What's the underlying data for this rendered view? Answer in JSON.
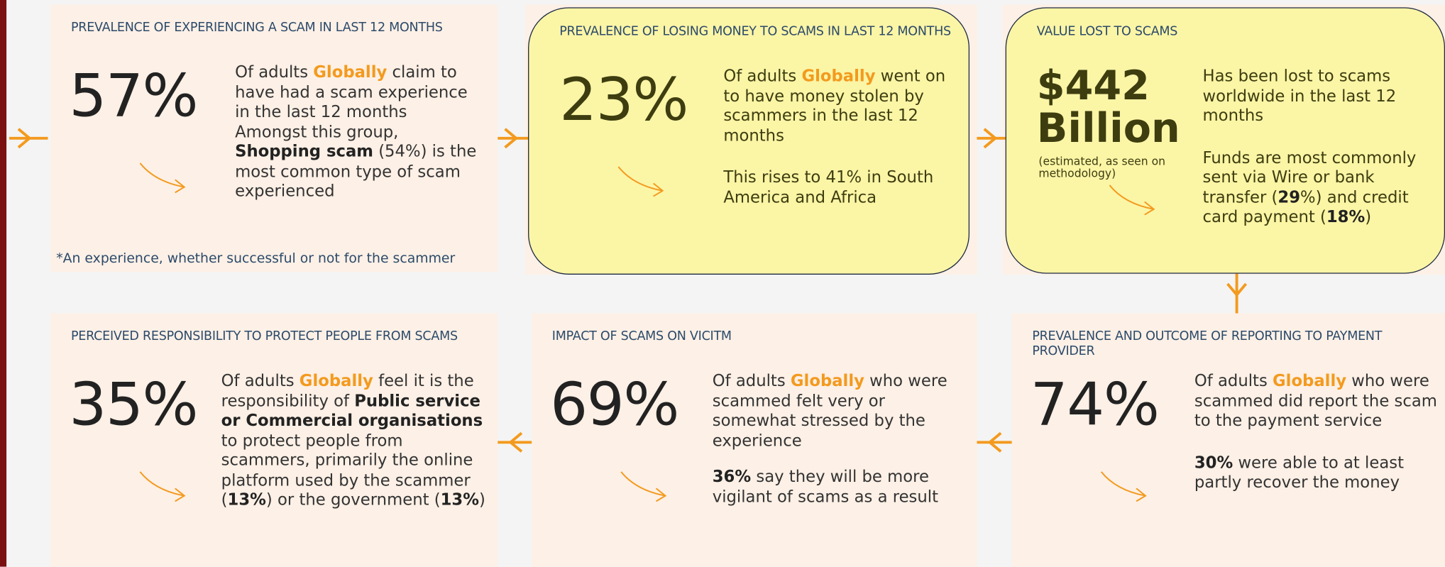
{
  "panels": [
    {
      "title": "PREVALENCE OF EXPERIENCING A SCAM IN LAST 12 MONTHS",
      "figure": "57%",
      "highlight": false,
      "body": [
        [
          {
            "text": "Of adults "
          },
          {
            "text": "Globally",
            "style": "highlight"
          },
          {
            "text": " claim to have had a scam experience in the last 12 months"
          }
        ],
        [
          {
            "text": "Amongst this group, "
          },
          {
            "text": "Shopping scam",
            "style": "bold"
          },
          {
            "text": " (54%) is the most common type of scam experienced"
          }
        ]
      ],
      "footnote": "*An experience, whether successful or not for the scammer"
    },
    {
      "title": "PREVALENCE OF LOSING MONEY TO SCAMS IN LAST 12 MONTHS",
      "figure": "23%",
      "highlight": true,
      "body": [
        [
          {
            "text": "Of adults "
          },
          {
            "text": "Globally",
            "style": "highlight"
          },
          {
            "text": " went on to have money stolen by scammers in the last 12 months"
          }
        ],
        [
          {
            "text": "This rises to 41% in South America and Africa"
          }
        ]
      ]
    },
    {
      "title": "VALUE LOST TO SCAMS",
      "figure": "$442 Billion",
      "highlight": true,
      "note": "(estimated, as seen on methodology)",
      "body": [
        [
          {
            "text": "Has been lost to scams worldwide in the last 12 months"
          }
        ],
        [
          {
            "text": "Funds are most commonly sent via Wire or bank transfer ("
          },
          {
            "text": "29",
            "style": "bold"
          },
          {
            "text": "%) and credit card payment ("
          },
          {
            "text": "18%",
            "style": "bold"
          },
          {
            "text": ")"
          }
        ]
      ]
    },
    {
      "title": "PERCEIVED RESPONSIBILITY TO PROTECT PEOPLE FROM SCAMS",
      "figure": "35%",
      "highlight": false,
      "body": [
        [
          {
            "text": "Of adults "
          },
          {
            "text": "Globally",
            "style": "highlight"
          },
          {
            "text": " feel it is the responsibility of "
          },
          {
            "text": "Public service or Commercial organisations",
            "style": "bold"
          },
          {
            "text": " to protect people from scammers, primarily the online platform used by the scammer ("
          },
          {
            "text": "13%",
            "style": "bold"
          },
          {
            "text": ") or the government ("
          },
          {
            "text": "13%",
            "style": "bold"
          },
          {
            "text": ")"
          }
        ]
      ]
    },
    {
      "title": "IMPACT OF SCAMS ON VICITM",
      "figure": "69%",
      "highlight": false,
      "body": [
        [
          {
            "text": "Of adults "
          },
          {
            "text": "Globally",
            "style": "highlight"
          },
          {
            "text": " who were scammed felt very or somewhat stressed by the experience"
          }
        ],
        [
          {
            "text": "36%",
            "style": "bold"
          },
          {
            "text": " say they will be more vigilant of scams as a result"
          }
        ]
      ]
    },
    {
      "title": "PREVALENCE AND OUTCOME OF REPORTING TO PAYMENT PROVIDER",
      "figure": "74%",
      "highlight": false,
      "body": [
        [
          {
            "text": "Of adults "
          },
          {
            "text": "Globally",
            "style": "highlight"
          },
          {
            "text": " who were scammed did report the scam to the payment service"
          }
        ],
        [
          {
            "text": "30%",
            "style": "bold"
          },
          {
            "text": " were able to at least partly recover the money"
          }
        ]
      ]
    }
  ]
}
